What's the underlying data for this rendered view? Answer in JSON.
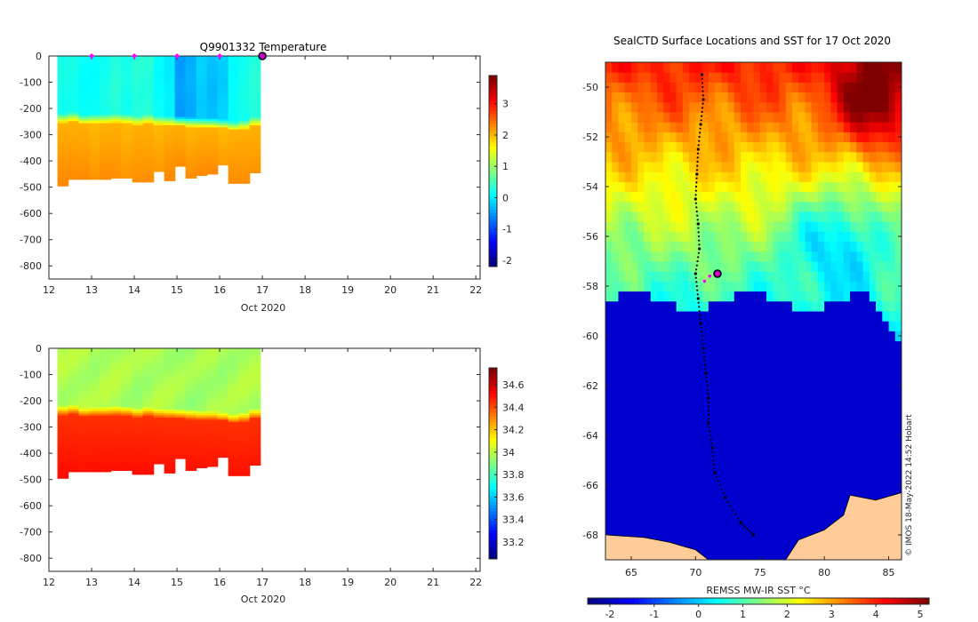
{
  "chart_data": [
    {
      "type": "heatmap",
      "title": "Q9901332  Temperature",
      "xlabel": "Oct 2020",
      "ylabel": "",
      "x_ticks": [
        12,
        13,
        14,
        15,
        16,
        17,
        18,
        19,
        20,
        21,
        22
      ],
      "y_ticks": [
        0,
        -100,
        -200,
        -300,
        -400,
        -500,
        -600,
        -700,
        -800
      ],
      "xlim": [
        12,
        22.1
      ],
      "ylim": [
        -850,
        0
      ],
      "colorbar_ticks": [
        -2,
        -1,
        0,
        1,
        2,
        3
      ],
      "colorbar_range": [
        -2.2,
        3.9
      ],
      "colormap": "jet",
      "grid": false,
      "profiles": {
        "x_edges": [
          12.2,
          12.45,
          12.7,
          12.95,
          13.2,
          13.45,
          13.7,
          13.95,
          14.2,
          14.45,
          14.7,
          14.95,
          15.2,
          15.45,
          15.7,
          15.95,
          16.2,
          16.45,
          16.7,
          16.95
        ],
        "max_depth": [
          495,
          470,
          470,
          470,
          470,
          465,
          465,
          480,
          480,
          440,
          475,
          420,
          465,
          455,
          450,
          415,
          485,
          485,
          445
        ],
        "mixed_layer_depth": [
          230,
          225,
          235,
          232,
          232,
          230,
          232,
          238,
          232,
          238,
          240,
          242,
          245,
          248,
          248,
          252,
          260,
          255,
          242
        ],
        "surface_value": [
          0.2,
          0.2,
          0.1,
          0.1,
          0.2,
          0.3,
          0.2,
          0.3,
          0.3,
          0.1,
          0.0,
          -0.5,
          -0.4,
          -0.2,
          -0.3,
          -0.2,
          0.1,
          0.2,
          0.3
        ],
        "deep_value": [
          2.05,
          2.05,
          2.05,
          2.0,
          2.05,
          2.05,
          2.0,
          2.05,
          2.05,
          2.0,
          2.05,
          2.05,
          2.0,
          2.05,
          2.05,
          2.0,
          2.05,
          2.05,
          2.05
        ]
      },
      "markers": {
        "x": [
          13,
          14,
          15,
          16
        ],
        "y": 0,
        "color": "#ff00ff"
      },
      "current_position": {
        "x": 17,
        "y": 0,
        "color": "#cc00cc"
      }
    },
    {
      "type": "heatmap",
      "title": "",
      "xlabel": "Oct 2020",
      "ylabel": "",
      "x_ticks": [
        12,
        13,
        14,
        15,
        16,
        17,
        18,
        19,
        20,
        21,
        22
      ],
      "y_ticks": [
        0,
        -100,
        -200,
        -300,
        -400,
        -500,
        -600,
        -700,
        -800
      ],
      "xlim": [
        12,
        22.1
      ],
      "ylim": [
        -850,
        0
      ],
      "colorbar_ticks": [
        33.2,
        33.4,
        33.6,
        33.8,
        34,
        34.2,
        34.4,
        34.6
      ],
      "colorbar_range": [
        33.05,
        34.75
      ],
      "colormap": "jet",
      "grid": false,
      "profiles": {
        "x_edges": [
          12.2,
          12.45,
          12.7,
          12.95,
          13.2,
          13.45,
          13.7,
          13.95,
          14.2,
          14.45,
          14.7,
          14.95,
          15.2,
          15.45,
          15.7,
          15.95,
          16.2,
          16.45,
          16.7,
          16.95
        ],
        "max_depth": [
          495,
          470,
          470,
          470,
          470,
          465,
          465,
          480,
          480,
          440,
          475,
          420,
          465,
          455,
          450,
          415,
          485,
          485,
          445
        ],
        "mixed_layer_depth": [
          230,
          225,
          235,
          232,
          232,
          230,
          232,
          238,
          232,
          238,
          240,
          242,
          245,
          248,
          248,
          252,
          260,
          255,
          242
        ],
        "surface_value": [
          33.98,
          33.98,
          33.98,
          33.97,
          33.98,
          33.98,
          33.97,
          33.96,
          33.97,
          33.98,
          33.97,
          33.96,
          33.95,
          33.96,
          33.97,
          33.96,
          33.97,
          33.98,
          33.98
        ],
        "deep_value": [
          34.45,
          34.45,
          34.45,
          34.45,
          34.45,
          34.45,
          34.45,
          34.45,
          34.45,
          34.45,
          34.45,
          34.45,
          34.45,
          34.45,
          34.45,
          34.45,
          34.45,
          34.45,
          34.45
        ]
      }
    },
    {
      "type": "heatmap",
      "title": "SealCTD Surface Locations and SST for 17 Oct 2020",
      "xlabel": "",
      "ylabel": "",
      "colorbar_label": "REMSS MW-IR SST °C",
      "x_ticks": [
        65,
        70,
        75,
        80,
        85
      ],
      "y_ticks": [
        -50,
        -52,
        -54,
        -56,
        -58,
        -60,
        -62,
        -64,
        -66,
        -68
      ],
      "xlim": [
        63,
        86
      ],
      "ylim": [
        -69,
        -49
      ],
      "colorbar_ticks": [
        -2,
        -1,
        0,
        1,
        2,
        3,
        4,
        5
      ],
      "colorbar_range": [
        -2.5,
        5.2
      ],
      "colormap": "jet",
      "ice_edge_lat": -58.6,
      "land_color": "#ffcc99",
      "track": [
        [
          70.5,
          -49.5
        ],
        [
          70.6,
          -50.5
        ],
        [
          70.4,
          -51.5
        ],
        [
          70.2,
          -52.5
        ],
        [
          70.1,
          -53.5
        ],
        [
          70.0,
          -54.5
        ],
        [
          70.2,
          -55.5
        ],
        [
          70.3,
          -56.5
        ],
        [
          70.0,
          -57.5
        ],
        [
          70.2,
          -58.5
        ],
        [
          70.4,
          -59.5
        ],
        [
          70.6,
          -60.5
        ],
        [
          70.8,
          -61.5
        ],
        [
          71.0,
          -62.5
        ],
        [
          71.0,
          -63.5
        ],
        [
          71.3,
          -64.5
        ],
        [
          71.5,
          -65.5
        ],
        [
          72.3,
          -66.5
        ],
        [
          73.5,
          -67.5
        ],
        [
          74.5,
          -68.0
        ]
      ],
      "recent_track": [
        [
          70.7,
          -57.8
        ],
        [
          71.1,
          -57.6
        ],
        [
          71.5,
          -57.5
        ]
      ],
      "current_position": {
        "lon": 71.7,
        "lat": -57.5,
        "color": "#cc00cc"
      },
      "credit": "© IMOS 18-May-2022 14:52 Hobart"
    }
  ]
}
